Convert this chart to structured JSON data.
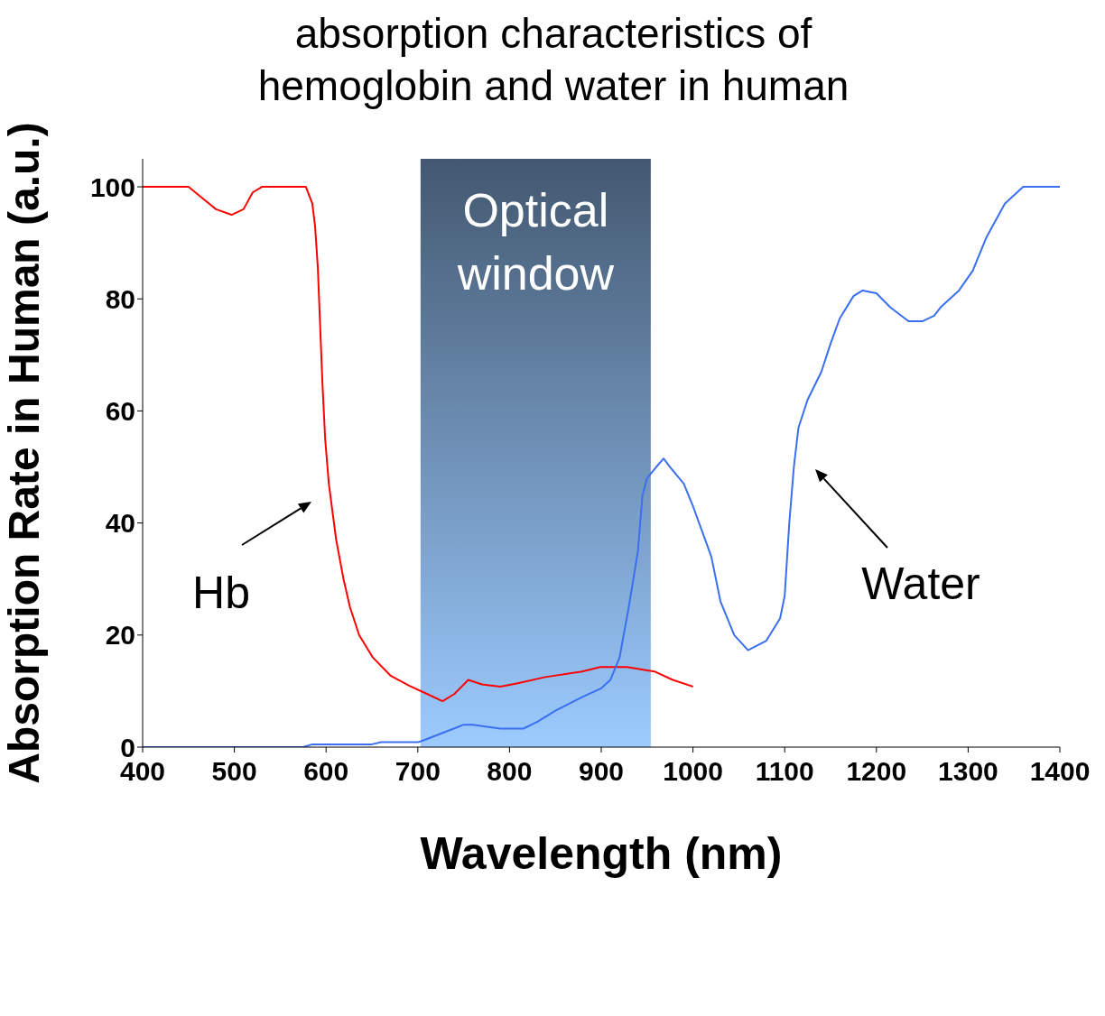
{
  "chart_data": {
    "type": "line",
    "title": "absorption characteristics of hemoglobin and water in human",
    "xlabel": "Wavelength (nm)",
    "ylabel": "Absorption Rate in Human  (a.u.)",
    "xlim": [
      400,
      1400
    ],
    "xticks": [
      400,
      500,
      600,
      700,
      800,
      900,
      1000,
      1100,
      1200,
      1300,
      1400
    ],
    "ylim": [
      0,
      105
    ],
    "yticks": [
      0,
      20,
      40,
      60,
      80,
      100
    ],
    "marker": "none",
    "line_style": "solid",
    "series": [
      {
        "color": "#ff0000",
        "x": [
          400,
          450,
          465,
          480,
          497,
          510,
          520,
          530,
          570,
          578,
          585,
          588,
          591,
          596,
          599,
          603,
          611,
          619,
          626,
          636,
          651,
          670,
          690,
          710,
          727,
          740,
          755,
          770,
          790,
          809,
          839,
          879,
          899,
          928,
          958,
          978,
          1000
        ],
        "values": [
          100,
          100,
          98,
          96,
          95,
          96,
          99,
          100,
          100,
          100,
          97,
          93,
          85.6,
          65,
          55,
          47,
          37,
          30,
          25,
          20,
          16,
          12.8,
          11,
          9.5,
          8.2,
          9.5,
          12,
          11.2,
          10.8,
          11.4,
          12.5,
          13.5,
          14.3,
          14.3,
          13.5,
          12,
          10.8
        ]
      },
      {
        "color": "#3a6ff0",
        "x": [
          400,
          575,
          585,
          650,
          660,
          700,
          703,
          750,
          760,
          790,
          815,
          830,
          850,
          880,
          900,
          910,
          920,
          930,
          940,
          945,
          950,
          960,
          968,
          975,
          990,
          1000,
          1020,
          1030,
          1045,
          1060,
          1080,
          1095,
          1100,
          1105,
          1110,
          1115,
          1125,
          1140,
          1150,
          1160,
          1175,
          1185,
          1200,
          1215,
          1235,
          1250,
          1263,
          1270,
          1290,
          1305,
          1320,
          1340,
          1360,
          1400
        ],
        "values": [
          0,
          0,
          0.5,
          0.5,
          0.9,
          0.9,
          1,
          4,
          4,
          3.3,
          3.3,
          4.5,
          6.5,
          9,
          10.5,
          12,
          16,
          25,
          35,
          45,
          48,
          50,
          51.5,
          50,
          47,
          43,
          34,
          26,
          20,
          17.3,
          19,
          23,
          27,
          40,
          50,
          57,
          62,
          67,
          72,
          76.5,
          80.5,
          81.5,
          81,
          78.5,
          76,
          76,
          77,
          78.5,
          81.5,
          85,
          91,
          97,
          100,
          100
        ]
      }
    ],
    "bands": [
      {
        "axis": "x",
        "from": 703,
        "to": 954,
        "label": "Optical window",
        "color": "#435870"
      }
    ],
    "annotations": [
      "Hb",
      "Water"
    ]
  }
}
